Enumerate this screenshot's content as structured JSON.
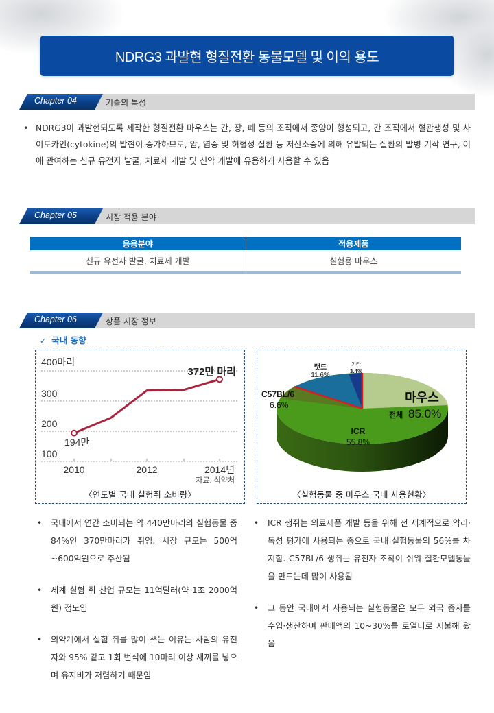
{
  "title": "NDRG3 과발현 형질전환 동물모델 및 이의 용도",
  "chapters": [
    {
      "tab": "Chapter 04",
      "heading": "기술의 특성"
    },
    {
      "tab": "Chapter 05",
      "heading": "시장 적용 분야"
    },
    {
      "tab": "Chapter 06",
      "heading": "상품 시장 정보"
    }
  ],
  "tech_features": {
    "bullet": "•",
    "text": "NDRG3이 과발현되도록 제작한 형질전환 마우스는 간, 장, 폐 등의 조직에서 종양이 형성되고, 간 조직에서 혈관생성 및 사이토카인(cytokine)의 발현이 증가하므로, 암, 염증 및 허혈성 질환 등 저산소증에 의해 유발되는 질환의 발병 기작 연구, 이에 관여하는 신규 유전자 발굴, 치료제 개발 및 신약 개발에 유용하게 사용할 수 있음"
  },
  "application_table": {
    "headers": [
      "응용분야",
      "적용제품"
    ],
    "rows": [
      [
        "신규 유전자 발굴,  치료제 개발",
        "실험용 마우스"
      ]
    ]
  },
  "market": {
    "subhead_check": "✓",
    "subhead": "국내 동향",
    "left_caption": "〈연도별 국내 실험쥐 소비량〉",
    "right_caption": "〈실험동물 중 마우스 국내 사용현황〉",
    "left_bullets": [
      "국내에서 연간 소비되는 약 440만마리의 실험동물 중 84%인 370만마리가 쥐임. 시장 규모는 500억~600억원으로 추산됨",
      "세계 실험 쥐 산업 규모는 11억달러(약 1조 2000억원) 정도임",
      "의약계에서 실험 쥐를 많이 쓰는 이유는 사람의 유전자와 95% 같고 1회 번식에 10마리 이상 새끼를 낳으며 유지비가 저렴하기 때문임"
    ],
    "right_bullets": [
      "ICR 생쥐는 의료제품 개발 등을 위해 전 세계적으로 약리·독성 평가에 사용되는 종으로 국내 실험동물의 56%를 차지함. C57BL/6 생쥐는 유전자 조작이 쉬워 질환모델동물을 만드는데 많이 사용됨",
      "그 동안 국내에서 사용되는 실험동물은 모두 외국 종자를 수입·생산하며 판매액의 10~30%를 로열티로 지불해 왔음"
    ],
    "bullet": "•"
  },
  "colors": {
    "banner": "#0a4aa0",
    "table_header": "#0070c0",
    "line": "#a8243f",
    "pie_icr": "#4a9a1c",
    "pie_c57": "#5a7a22",
    "pie_rat": "#1a6e9c",
    "pie_other": "#173a8a",
    "pie_mouse_rest": "#b6cc8e"
  },
  "chart_data": [
    {
      "type": "line",
      "title": "〈연도별 국내 실험쥐 소비량〉",
      "x": [
        "2010",
        "2011",
        "2012",
        "2013",
        "2014"
      ],
      "series": [
        {
          "name": "실험쥐 소비량(만 마리)",
          "values": [
            194,
            245,
            335,
            337,
            372
          ]
        }
      ],
      "ytick_labels": [
        "400마리",
        "300",
        "200",
        "100"
      ],
      "xtick_labels": [
        "2010",
        "2012",
        "2014년"
      ],
      "annotations": [
        "194만",
        "372만 마리"
      ],
      "source": "자료: 식약처",
      "ylim": [
        100,
        400
      ],
      "grid": true
    },
    {
      "type": "pie",
      "title": "〈실험동물 중 마우스 국내 사용현황〉",
      "labels": [
        "ICR",
        "C57BL/6",
        "랫드",
        "기타",
        "마우스(기타)"
      ],
      "values": [
        55.8,
        6.6,
        11.6,
        3.4,
        22.6
      ],
      "label_texts": {
        "icr": "ICR",
        "icr_pct": "55.8%",
        "c57": "C57BL/6",
        "c57_pct": "6.6%",
        "rat": "랫드",
        "rat_pct": "11.6%",
        "other": "기타",
        "other_pct": "3.4%",
        "mouse": "마우스",
        "mouse_total_label": "전체",
        "mouse_total_pct": "85.0%"
      }
    }
  ]
}
